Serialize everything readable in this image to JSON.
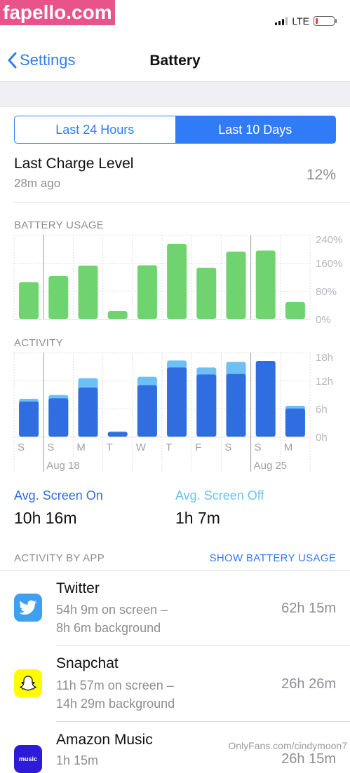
{
  "watermark": "fapello.com",
  "status": {
    "carrier": "LTE"
  },
  "nav": {
    "back_label": "Settings",
    "title": "Battery"
  },
  "segmented": {
    "left": "Last 24 Hours",
    "right": "Last 10 Days",
    "selected": "Last 10 Days"
  },
  "charge": {
    "title": "Last Charge Level",
    "time": "28m ago",
    "level": "12%"
  },
  "usage_label": "BATTERY USAGE",
  "activity_label": "ACTIVITY",
  "chart_data": [
    {
      "type": "bar",
      "title": "BATTERY USAGE",
      "categories": [
        "S",
        "S",
        "M",
        "T",
        "W",
        "T",
        "F",
        "S",
        "S",
        "M"
      ],
      "values": [
        105,
        122,
        152,
        22,
        153,
        214,
        146,
        192,
        195,
        48
      ],
      "yticks": [
        "240%",
        "160%",
        "80%",
        "0%"
      ],
      "ylim": [
        0,
        240
      ],
      "color": "#6fd46f"
    },
    {
      "type": "bar",
      "title": "ACTIVITY",
      "categories": [
        "S",
        "S",
        "M",
        "T",
        "W",
        "T",
        "F",
        "S",
        "S",
        "M"
      ],
      "date_labels": [
        {
          "index": 1,
          "label": "Aug 18"
        },
        {
          "index": 8,
          "label": "Aug 25"
        }
      ],
      "series": [
        {
          "name": "Screen On",
          "values": [
            7.5,
            8.2,
            10.5,
            1.0,
            11.0,
            14.8,
            13.3,
            13.4,
            16.2,
            6.0
          ],
          "color": "#2f6de0"
        },
        {
          "name": "Screen Off",
          "values": [
            0.6,
            0.7,
            2.0,
            0.1,
            1.8,
            1.5,
            1.5,
            2.6,
            0.0,
            0.6
          ],
          "color": "#6cc0f5"
        }
      ],
      "yticks": [
        "18h",
        "12h",
        "6h",
        "0h"
      ],
      "ylim": [
        0,
        18
      ]
    }
  ],
  "avg": {
    "on_label": "Avg. Screen On",
    "on_value": "10h 16m",
    "off_label": "Avg. Screen Off",
    "off_value": "1h 7m"
  },
  "apps_section": {
    "label": "ACTIVITY BY APP",
    "link": "SHOW BATTERY USAGE"
  },
  "apps": [
    {
      "name": "Twitter",
      "detail1": "54h 9m on screen –",
      "detail2": "8h 6m background",
      "total": "62h 15m",
      "icon": "twitter-bird-icon",
      "color": "#3fa0ef"
    },
    {
      "name": "Snapchat",
      "detail1": "11h 57m on screen –",
      "detail2": "14h 29m background",
      "total": "26h 26m",
      "icon": "snapchat-ghost-icon",
      "color": "#fffc00"
    },
    {
      "name": "Amazon Music",
      "detail1": "1h 15m",
      "total": "26h 15m",
      "icon": "amazon-music-icon",
      "color": "#2d1bd8"
    }
  ],
  "footer_watermark": "OnlyFans.com/cindymoon7"
}
